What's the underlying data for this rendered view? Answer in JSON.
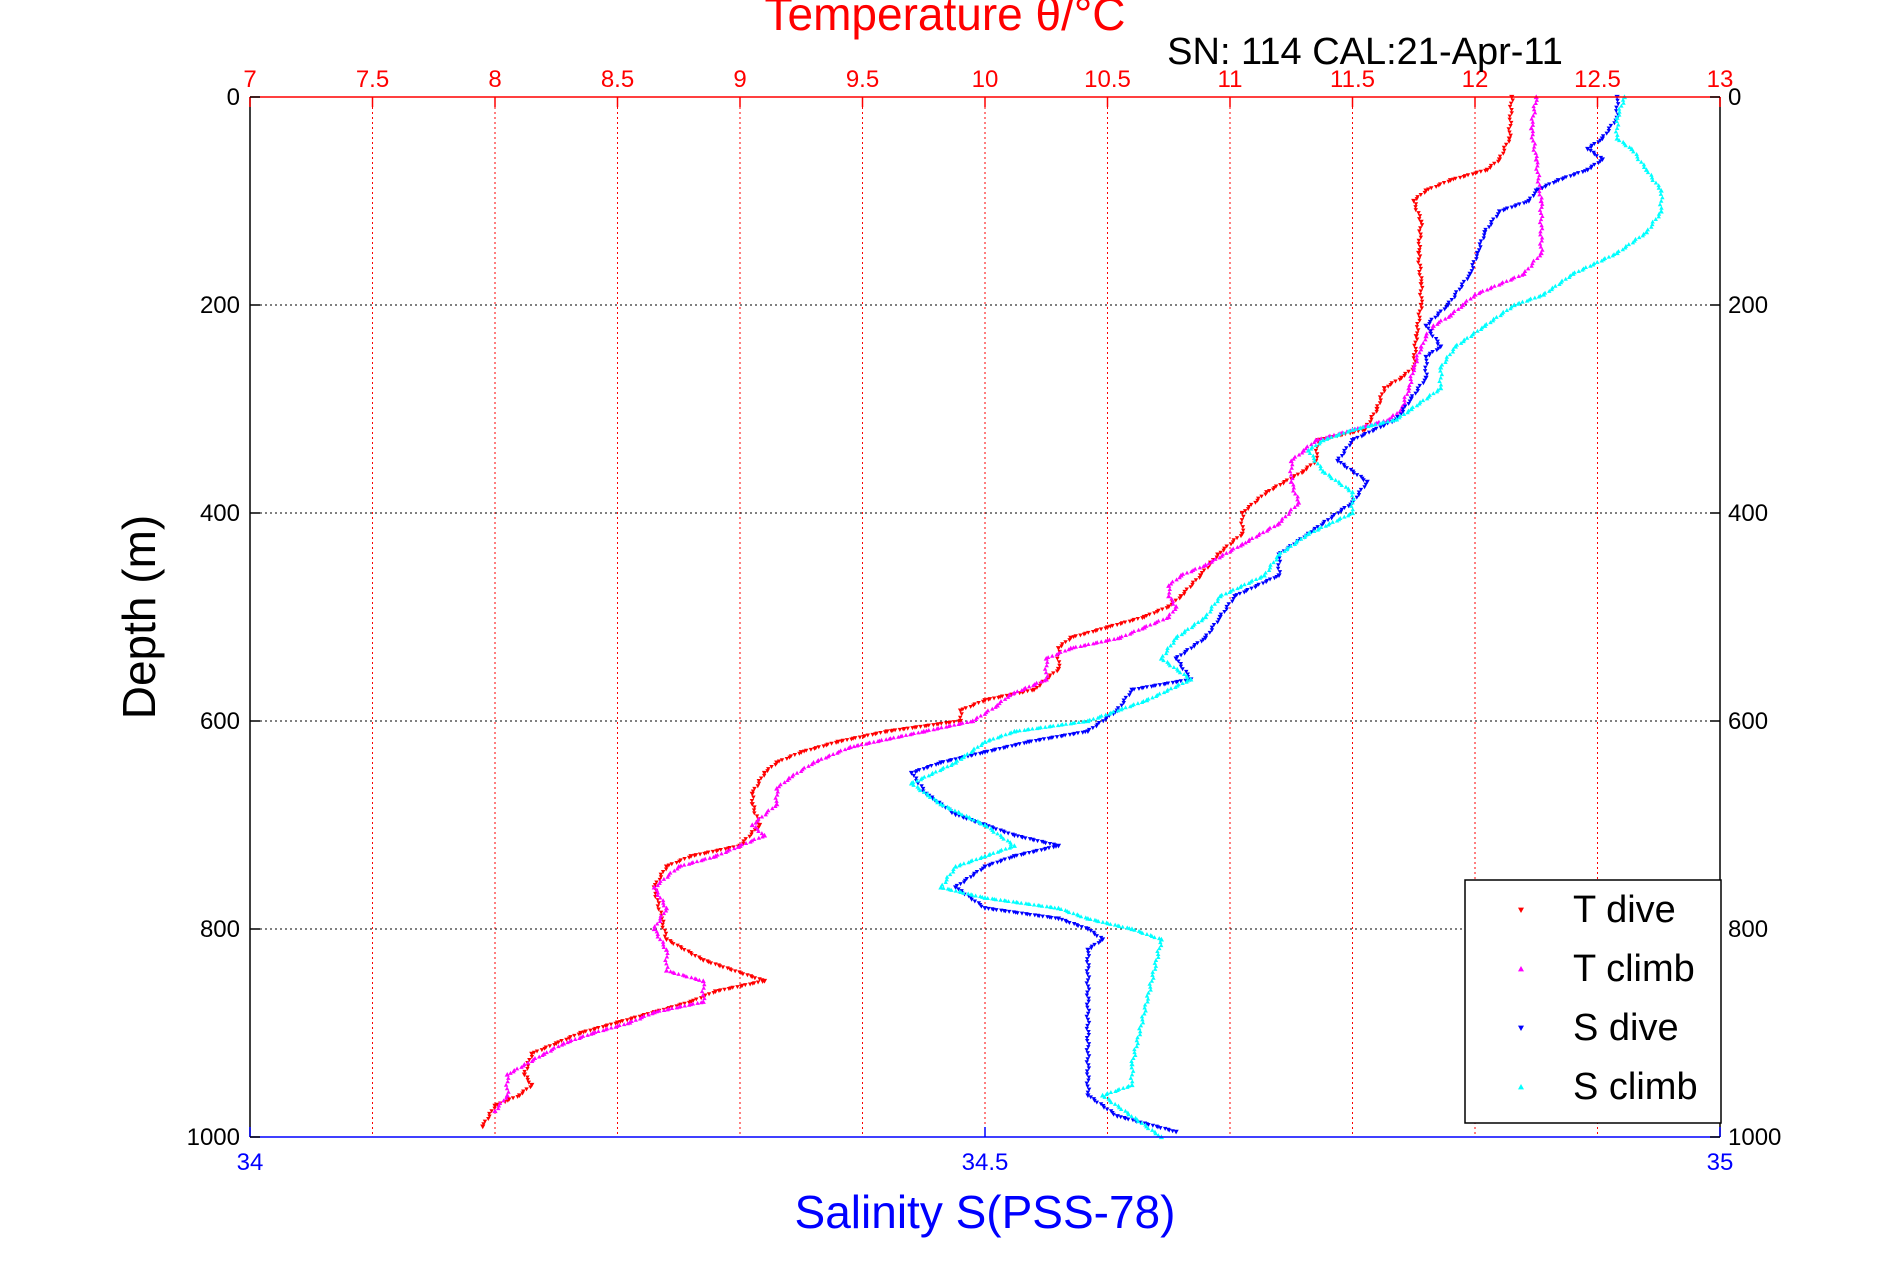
{
  "chart_data": {
    "type": "scatter",
    "title": "Temperature θ/°C",
    "subtitle": "SN: 114  CAL:21-Apr-11",
    "xlabel_top": "Temperature θ/°C",
    "xlabel_bottom": "Salinity S(PSS-78)",
    "ylabel": "Depth (m)",
    "x_top_range": [
      7,
      13
    ],
    "x_top_ticks": [
      "7",
      "7.5",
      "8",
      "8.5",
      "9",
      "9.5",
      "10",
      "10.5",
      "11",
      "11.5",
      "12",
      "12.5",
      "13"
    ],
    "x_bottom_range": [
      34,
      35
    ],
    "x_bottom_ticks": [
      "34",
      "34.5",
      "35"
    ],
    "y_range": [
      0,
      1000
    ],
    "y_reversed": true,
    "y_ticks": [
      "0",
      "200",
      "400",
      "600",
      "800",
      "1000"
    ],
    "grid": true,
    "legend_position": "bottom-right",
    "colors": {
      "T dive": "#ff0000",
      "T climb": "#ff00ff",
      "S dive": "#0000ff",
      "S climb": "#00ffff",
      "top_axis": "#ff0000",
      "bottom_axis": "#0000ff"
    },
    "series": [
      {
        "name": "T dive",
        "axis": "temperature",
        "color": "#ff0000",
        "points": [
          [
            12.15,
            0
          ],
          [
            12.14,
            40
          ],
          [
            12.1,
            60
          ],
          [
            12.05,
            70
          ],
          [
            11.9,
            80
          ],
          [
            11.8,
            90
          ],
          [
            11.75,
            100
          ],
          [
            11.78,
            120
          ],
          [
            11.77,
            150
          ],
          [
            11.78,
            180
          ],
          [
            11.78,
            200
          ],
          [
            11.76,
            230
          ],
          [
            11.75,
            260
          ],
          [
            11.7,
            270
          ],
          [
            11.63,
            280
          ],
          [
            11.6,
            300
          ],
          [
            11.55,
            320
          ],
          [
            11.36,
            330
          ],
          [
            11.35,
            350
          ],
          [
            11.3,
            360
          ],
          [
            11.15,
            380
          ],
          [
            11.05,
            400
          ],
          [
            11.05,
            420
          ],
          [
            10.95,
            440
          ],
          [
            10.88,
            460
          ],
          [
            10.8,
            480
          ],
          [
            10.75,
            490
          ],
          [
            10.65,
            500
          ],
          [
            10.5,
            510
          ],
          [
            10.35,
            520
          ],
          [
            10.3,
            530
          ],
          [
            10.3,
            550
          ],
          [
            10.2,
            570
          ],
          [
            10.0,
            580
          ],
          [
            9.9,
            590
          ],
          [
            9.9,
            600
          ],
          [
            9.6,
            610
          ],
          [
            9.4,
            620
          ],
          [
            9.25,
            630
          ],
          [
            9.15,
            640
          ],
          [
            9.1,
            650
          ],
          [
            9.05,
            670
          ],
          [
            9.05,
            680
          ],
          [
            9.08,
            700
          ],
          [
            9.0,
            720
          ],
          [
            8.8,
            730
          ],
          [
            8.7,
            740
          ],
          [
            8.65,
            760
          ],
          [
            8.68,
            790
          ],
          [
            8.7,
            810
          ],
          [
            8.85,
            830
          ],
          [
            9.1,
            850
          ],
          [
            8.9,
            860
          ],
          [
            8.8,
            870
          ],
          [
            8.65,
            880
          ],
          [
            8.5,
            890
          ],
          [
            8.35,
            900
          ],
          [
            8.25,
            910
          ],
          [
            8.15,
            920
          ],
          [
            8.12,
            940
          ],
          [
            8.15,
            950
          ],
          [
            8.1,
            960
          ],
          [
            8.0,
            970
          ],
          [
            7.95,
            990
          ]
        ]
      },
      {
        "name": "T climb",
        "axis": "temperature",
        "color": "#ff00ff",
        "points": [
          [
            12.25,
            0
          ],
          [
            12.23,
            30
          ],
          [
            12.25,
            60
          ],
          [
            12.27,
            100
          ],
          [
            12.27,
            150
          ],
          [
            12.2,
            170
          ],
          [
            12.0,
            190
          ],
          [
            11.95,
            200
          ],
          [
            11.9,
            210
          ],
          [
            11.83,
            220
          ],
          [
            11.8,
            230
          ],
          [
            11.78,
            240
          ],
          [
            11.75,
            260
          ],
          [
            11.73,
            280
          ],
          [
            11.7,
            300
          ],
          [
            11.65,
            310
          ],
          [
            11.5,
            320
          ],
          [
            11.35,
            330
          ],
          [
            11.3,
            340
          ],
          [
            11.25,
            350
          ],
          [
            11.25,
            370
          ],
          [
            11.28,
            390
          ],
          [
            11.2,
            410
          ],
          [
            11.05,
            430
          ],
          [
            10.9,
            450
          ],
          [
            10.8,
            460
          ],
          [
            10.75,
            470
          ],
          [
            10.75,
            480
          ],
          [
            10.78,
            490
          ],
          [
            10.75,
            500
          ],
          [
            10.65,
            510
          ],
          [
            10.55,
            520
          ],
          [
            10.35,
            530
          ],
          [
            10.25,
            540
          ],
          [
            10.25,
            560
          ],
          [
            10.1,
            575
          ],
          [
            10.05,
            585
          ],
          [
            9.95,
            600
          ],
          [
            9.75,
            610
          ],
          [
            9.45,
            625
          ],
          [
            9.3,
            640
          ],
          [
            9.2,
            655
          ],
          [
            9.15,
            665
          ],
          [
            9.15,
            680
          ],
          [
            9.05,
            700
          ],
          [
            9.1,
            710
          ],
          [
            9.0,
            720
          ],
          [
            8.9,
            730
          ],
          [
            8.75,
            740
          ],
          [
            8.65,
            760
          ],
          [
            8.7,
            780
          ],
          [
            8.65,
            800
          ],
          [
            8.7,
            820
          ],
          [
            8.7,
            840
          ],
          [
            8.85,
            850
          ],
          [
            8.85,
            870
          ],
          [
            8.65,
            880
          ],
          [
            8.55,
            890
          ],
          [
            8.4,
            900
          ],
          [
            8.28,
            910
          ],
          [
            8.2,
            920
          ],
          [
            8.05,
            940
          ],
          [
            8.05,
            960
          ],
          [
            8.0,
            975
          ]
        ]
      },
      {
        "name": "S dive",
        "axis": "salinity",
        "color": "#0000ff",
        "points": [
          [
            34.93,
            0
          ],
          [
            34.93,
            20
          ],
          [
            34.92,
            40
          ],
          [
            34.91,
            50
          ],
          [
            34.92,
            60
          ],
          [
            34.91,
            70
          ],
          [
            34.89,
            80
          ],
          [
            34.875,
            90
          ],
          [
            34.87,
            100
          ],
          [
            34.85,
            110
          ],
          [
            34.84,
            130
          ],
          [
            34.835,
            150
          ],
          [
            34.83,
            170
          ],
          [
            34.815,
            200
          ],
          [
            34.8,
            220
          ],
          [
            34.81,
            240
          ],
          [
            34.8,
            250
          ],
          [
            34.8,
            270
          ],
          [
            34.79,
            290
          ],
          [
            34.78,
            310
          ],
          [
            34.75,
            330
          ],
          [
            34.74,
            350
          ],
          [
            34.76,
            370
          ],
          [
            34.75,
            390
          ],
          [
            34.72,
            420
          ],
          [
            34.7,
            440
          ],
          [
            34.7,
            460
          ],
          [
            34.67,
            480
          ],
          [
            34.66,
            500
          ],
          [
            34.65,
            520
          ],
          [
            34.63,
            540
          ],
          [
            34.64,
            560
          ],
          [
            34.6,
            570
          ],
          [
            34.59,
            590
          ],
          [
            34.57,
            610
          ],
          [
            34.53,
            620
          ],
          [
            34.5,
            630
          ],
          [
            34.47,
            640
          ],
          [
            34.45,
            650
          ],
          [
            34.46,
            670
          ],
          [
            34.48,
            690
          ],
          [
            34.5,
            700
          ],
          [
            34.52,
            710
          ],
          [
            34.55,
            720
          ],
          [
            34.52,
            730
          ],
          [
            34.5,
            740
          ],
          [
            34.48,
            760
          ],
          [
            34.5,
            780
          ],
          [
            34.55,
            790
          ],
          [
            34.57,
            800
          ],
          [
            34.58,
            810
          ],
          [
            34.57,
            820
          ],
          [
            34.57,
            960
          ],
          [
            34.59,
            980
          ],
          [
            34.63,
            995
          ]
        ]
      },
      {
        "name": "S climb",
        "axis": "salinity",
        "color": "#00ffff",
        "points": [
          [
            34.935,
            0
          ],
          [
            34.93,
            20
          ],
          [
            34.93,
            40
          ],
          [
            34.94,
            50
          ],
          [
            34.95,
            70
          ],
          [
            34.96,
            90
          ],
          [
            34.96,
            110
          ],
          [
            34.95,
            130
          ],
          [
            34.93,
            150
          ],
          [
            34.9,
            170
          ],
          [
            34.88,
            190
          ],
          [
            34.86,
            200
          ],
          [
            34.84,
            220
          ],
          [
            34.82,
            240
          ],
          [
            34.81,
            260
          ],
          [
            34.81,
            280
          ],
          [
            34.79,
            300
          ],
          [
            34.78,
            310
          ],
          [
            34.75,
            320
          ],
          [
            34.73,
            330
          ],
          [
            34.72,
            340
          ],
          [
            34.73,
            360
          ],
          [
            34.75,
            380
          ],
          [
            34.75,
            400
          ],
          [
            34.72,
            420
          ],
          [
            34.7,
            440
          ],
          [
            34.69,
            460
          ],
          [
            34.66,
            480
          ],
          [
            34.65,
            500
          ],
          [
            34.63,
            520
          ],
          [
            34.62,
            540
          ],
          [
            34.64,
            560
          ],
          [
            34.61,
            580
          ],
          [
            34.57,
            600
          ],
          [
            34.52,
            610
          ],
          [
            34.5,
            620
          ],
          [
            34.48,
            640
          ],
          [
            34.45,
            660
          ],
          [
            34.47,
            680
          ],
          [
            34.5,
            700
          ],
          [
            34.52,
            720
          ],
          [
            34.5,
            730
          ],
          [
            34.48,
            740
          ],
          [
            34.47,
            760
          ],
          [
            34.5,
            770
          ],
          [
            34.55,
            780
          ],
          [
            34.57,
            790
          ],
          [
            34.6,
            800
          ],
          [
            34.62,
            810
          ],
          [
            34.6,
            930
          ],
          [
            34.6,
            950
          ],
          [
            34.58,
            960
          ],
          [
            34.62,
            1000
          ]
        ]
      }
    ]
  },
  "legend": {
    "items": [
      {
        "label": "T dive",
        "color": "#ff0000",
        "marker": "triangle-down"
      },
      {
        "label": "T climb",
        "color": "#ff00ff",
        "marker": "triangle-up"
      },
      {
        "label": "S dive",
        "color": "#0000ff",
        "marker": "triangle-down"
      },
      {
        "label": "S climb",
        "color": "#00ffff",
        "marker": "triangle-up"
      }
    ]
  }
}
